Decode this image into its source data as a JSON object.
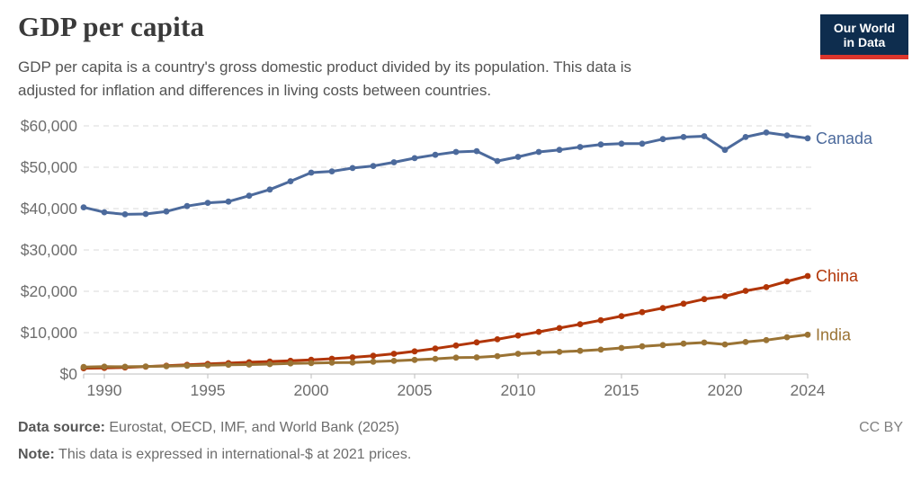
{
  "header": {
    "title": "GDP per capita",
    "subtitle_line1": "GDP per capita is a country's gross domestic product divided by its population. This data is",
    "subtitle_line2": "adjusted for inflation and differences in living costs between countries.",
    "logo": {
      "line1": "Our World",
      "line2": "in Data",
      "bg_color": "#0E2D4E",
      "stripe_color": "#DC352C"
    }
  },
  "footer": {
    "source_label": "Data source:",
    "source_text": " Eurostat, OECD, IMF, and World Bank (2025)",
    "license": "CC BY",
    "note_label": "Note:",
    "note_text": " This data is expressed in international-$ at 2021 prices."
  },
  "chart_data": {
    "type": "line",
    "title": "GDP per capita",
    "xlabel": "",
    "ylabel": "",
    "xlim": [
      1989,
      2024
    ],
    "ylim": [
      0,
      60000
    ],
    "grid": "horizontal-dashed",
    "legend_position": "end-of-line-labels",
    "x": [
      1989,
      1990,
      1991,
      1992,
      1993,
      1994,
      1995,
      1996,
      1997,
      1998,
      1999,
      2000,
      2001,
      2002,
      2003,
      2004,
      2005,
      2006,
      2007,
      2008,
      2009,
      2010,
      2011,
      2012,
      2013,
      2014,
      2015,
      2016,
      2017,
      2018,
      2019,
      2020,
      2021,
      2022,
      2023,
      2024
    ],
    "series": [
      {
        "name": "Canada",
        "color": "#4C6A9C",
        "values": [
          40300,
          39100,
          38600,
          38700,
          39300,
          40600,
          41400,
          41700,
          43100,
          44600,
          46600,
          48700,
          49000,
          49800,
          50300,
          51200,
          52200,
          53000,
          53700,
          53900,
          51500,
          52500,
          53700,
          54200,
          54900,
          55500,
          55700,
          55700,
          56800,
          57300,
          57500,
          54200,
          57300,
          58400,
          57700,
          57000
        ]
      },
      {
        "name": "China",
        "color": "#B13507",
        "values": [
          1400,
          1470,
          1580,
          1780,
          1990,
          2210,
          2430,
          2630,
          2840,
          3020,
          3200,
          3440,
          3700,
          4020,
          4410,
          4900,
          5480,
          6150,
          6900,
          7650,
          8400,
          9300,
          10200,
          11100,
          12050,
          13000,
          14000,
          14950,
          15950,
          17000,
          18100,
          18800,
          20100,
          21000,
          22400,
          23700
        ]
      },
      {
        "name": "India",
        "color": "#9A7334",
        "values": [
          1700,
          1780,
          1760,
          1820,
          1890,
          1990,
          2100,
          2230,
          2290,
          2400,
          2560,
          2640,
          2730,
          2790,
          2980,
          3170,
          3420,
          3680,
          3950,
          4030,
          4330,
          4900,
          5150,
          5350,
          5600,
          5900,
          6300,
          6700,
          7000,
          7350,
          7600,
          7150,
          7750,
          8200,
          8900,
          9500
        ]
      }
    ],
    "yticks": [
      {
        "value": 0,
        "label": "$0"
      },
      {
        "value": 10000,
        "label": "$10,000"
      },
      {
        "value": 20000,
        "label": "$20,000"
      },
      {
        "value": 30000,
        "label": "$30,000"
      },
      {
        "value": 40000,
        "label": "$40,000"
      },
      {
        "value": 50000,
        "label": "$50,000"
      },
      {
        "value": 60000,
        "label": "$60,000"
      }
    ],
    "xticks": [
      {
        "value": 1990,
        "label": "1990"
      },
      {
        "value": 1995,
        "label": "1995"
      },
      {
        "value": 2000,
        "label": "2000"
      },
      {
        "value": 2005,
        "label": "2005"
      },
      {
        "value": 2010,
        "label": "2010"
      },
      {
        "value": 2015,
        "label": "2015"
      },
      {
        "value": 2020,
        "label": "2020"
      },
      {
        "value": 2024,
        "label": "2024"
      }
    ]
  }
}
